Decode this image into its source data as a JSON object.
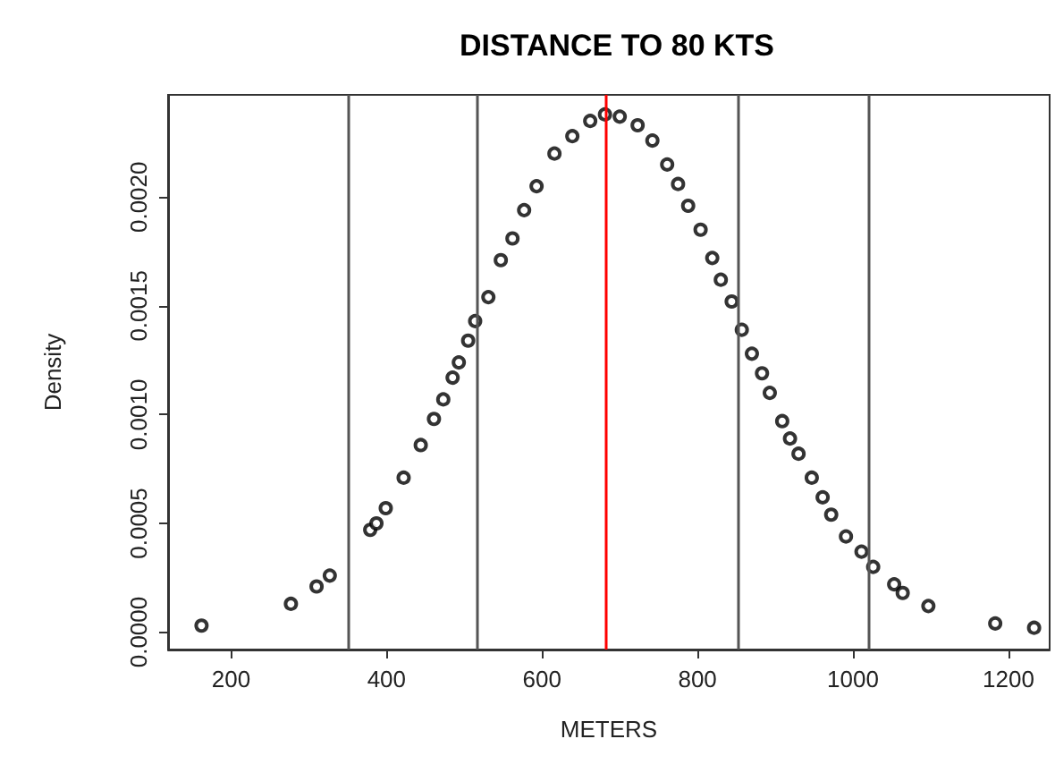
{
  "chart_data": {
    "type": "scatter",
    "title": "DISTANCE TO 80 KTS",
    "xlabel": "METERS",
    "ylabel": "Density",
    "x": [
      162,
      277,
      310,
      327,
      379,
      387,
      399,
      422,
      444,
      461,
      473,
      485,
      493,
      505,
      514,
      531,
      547,
      562,
      577,
      593,
      616,
      639,
      662,
      681,
      700,
      723,
      742,
      761,
      775,
      788,
      804,
      819,
      830,
      844,
      857,
      870,
      883,
      893,
      909,
      919,
      930,
      947,
      961,
      972,
      991,
      1011,
      1026,
      1053,
      1064,
      1097,
      1183,
      1233
    ],
    "series": [
      {
        "color": "#000000",
        "values": [
          3e-05,
          0.00013,
          0.00021,
          0.00026,
          0.00047,
          0.0005,
          0.00057,
          0.00071,
          0.00086,
          0.00098,
          0.00107,
          0.00117,
          0.00124,
          0.00134,
          0.00143,
          0.00154,
          0.00171,
          0.00181,
          0.00194,
          0.00205,
          0.0022,
          0.00228,
          0.00235,
          0.00238,
          0.00237,
          0.00233,
          0.00226,
          0.00215,
          0.00206,
          0.00196,
          0.00185,
          0.00172,
          0.00162,
          0.00152,
          0.00139,
          0.00128,
          0.00119,
          0.0011,
          0.00097,
          0.00089,
          0.00082,
          0.00071,
          0.00062,
          0.00054,
          0.00044,
          0.00037,
          0.0003,
          0.00022,
          0.00018,
          0.00012,
          4e-05,
          2e-05
        ]
      }
    ],
    "xlim": [
      119,
      1253
    ],
    "xticks": [
      200,
      400,
      600,
      800,
      1000,
      1200
    ],
    "ylim": [
      -8e-05,
      0.00247
    ],
    "yticks": [
      {
        "value": 0,
        "label": "0.0000"
      },
      {
        "value": 0.0005,
        "label": "0.0005"
      },
      {
        "value": 0.001,
        "label": "0.0010"
      },
      {
        "value": 0.0015,
        "label": "0.0015"
      },
      {
        "value": 0.002,
        "label": "0.0020"
      }
    ],
    "ref_lines": [
      {
        "axis": "x",
        "value": 350,
        "color": "#555555"
      },
      {
        "axis": "x",
        "value": 516,
        "color": "#555555"
      },
      {
        "axis": "x",
        "value": 682,
        "color": "#ff0000"
      },
      {
        "axis": "x",
        "value": 853,
        "color": "#555555"
      },
      {
        "axis": "x",
        "value": 1019,
        "color": "#555555"
      }
    ],
    "marker": "circle",
    "grid": false
  }
}
